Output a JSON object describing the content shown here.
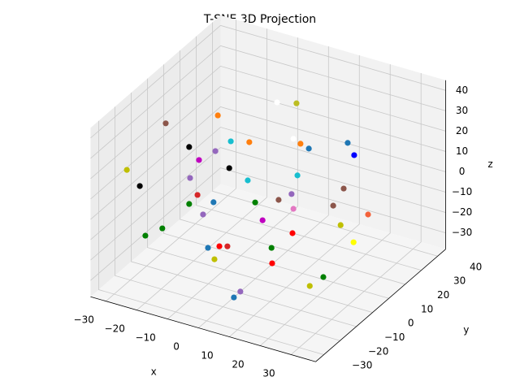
{
  "chart_data": {
    "type": "scatter3d",
    "title": "T-SNE 3D Projection",
    "x_label": "x",
    "y_label": "y",
    "z_label": "z",
    "xlim": [
      -35,
      38
    ],
    "ylim": [
      -35,
      45
    ],
    "zlim": [
      -38,
      45
    ],
    "xticks": [
      {
        "value": -30,
        "label": "−30"
      },
      {
        "value": -20,
        "label": "−20"
      },
      {
        "value": -10,
        "label": "−10"
      },
      0,
      10,
      20,
      30
    ],
    "yticks": [
      {
        "value": -30,
        "label": "−30"
      },
      {
        "value": -20,
        "label": "−20"
      },
      {
        "value": -10,
        "label": "−10"
      },
      0,
      10,
      20,
      30,
      40
    ],
    "zticks": [
      {
        "value": -30,
        "label": "−30"
      },
      {
        "value": -20,
        "label": "−20"
      },
      {
        "value": -10,
        "label": "−10"
      },
      0,
      10,
      20,
      30,
      40
    ],
    "grid": true,
    "x": [
      4.4,
      10.7,
      -14.8,
      -31.7,
      -24.1,
      -15.6,
      -10.6,
      -4.6,
      9.7,
      12.0,
      14.7,
      27.3,
      29.4,
      -44.3,
      -20.9,
      -11.1,
      11.0,
      -5.1,
      -23.8,
      -40.1,
      -21.4,
      -16.2,
      -24.1,
      -2.7,
      9.1,
      4.9,
      26.0,
      22.6,
      9.7,
      -19.6,
      -0.3,
      33.9,
      25.0,
      -32.8,
      -38.3,
      9.4,
      29.2,
      -14.3,
      -11.7,
      -18.0,
      2.6,
      -15.9,
      2.8,
      19.4,
      15.0,
      -7.5,
      -9.6
    ],
    "y": [
      5,
      5,
      5,
      5,
      5,
      5,
      5,
      5,
      5,
      5,
      5,
      5,
      5,
      5,
      5,
      5,
      5,
      5,
      5,
      5,
      5,
      5,
      5,
      5,
      5,
      5,
      5,
      5,
      5,
      5,
      5,
      5,
      5,
      5,
      5,
      5,
      5,
      5,
      5,
      5,
      5,
      5,
      5,
      5,
      5,
      5,
      5
    ],
    "z": [
      47.1,
      49.4,
      32.3,
      21.0,
      12.7,
      14.4,
      21.4,
      23.6,
      31.5,
      30.1,
      28.9,
      37.2,
      32.1,
      -7.4,
      7.7,
      8.0,
      14.1,
      4.6,
      -2.4,
      -13.5,
      -9.7,
      -11.0,
      -15.3,
      -5.2,
      4.1,
      -0.6,
      14.2,
      4.3,
      -2.9,
      -18.5,
      -12.9,
      4.9,
      -4.2,
      -31.1,
      -37.1,
      -15.0,
      -10.8,
      -31.8,
      -30.7,
      -34.2,
      -25.2,
      -38.9,
      -32.7,
      -32.2,
      -38.5,
      -51.1,
      -54.9
    ],
    "colors": [
      "#ffffff",
      "#bcbd22",
      "#ff7f0e",
      "#8c564b",
      "#000000",
      "#9467bd",
      "#17becf",
      "#ff7f0e",
      "#ffffff",
      "#ff7f0e",
      "#1f77b4",
      "#1f77b4",
      "#0000ff",
      "#bfbf00",
      "#bf00bf",
      "#000000",
      "#17becf",
      "#17becf",
      "#9467bd",
      "#000000",
      "#d62728",
      "#1f77b4",
      "#008000",
      "#008000",
      "#9467bd",
      "#8c564b",
      "#8c564b",
      "#8c564b",
      "#e377c2",
      "#9467bd",
      "#bf00bf",
      "#f4623a",
      "#bfbf00",
      "#008000",
      "#008000",
      "#ff0000",
      "#ffff00",
      "#ff0000",
      "#d62728",
      "#1f77b4",
      "#008000",
      "#bfbf00",
      "#ff0000",
      "#008000",
      "#bfbf00",
      "#9467bd",
      "#1f77b4"
    ]
  }
}
